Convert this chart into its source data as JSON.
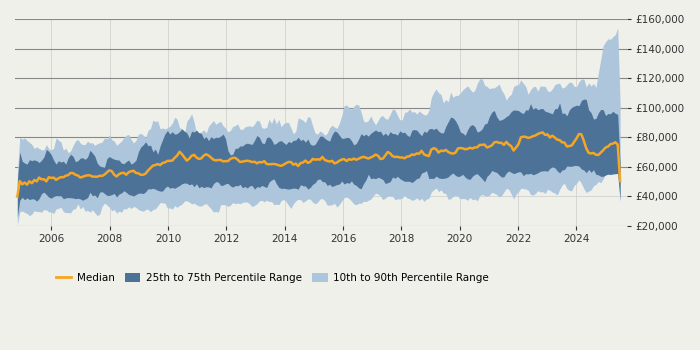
{
  "x_start_year": 2004.75,
  "x_end_year": 2025.75,
  "y_min": 20000,
  "y_max": 160000,
  "y_ticks": [
    20000,
    40000,
    60000,
    80000,
    100000,
    120000,
    140000,
    160000
  ],
  "x_ticks": [
    2006,
    2008,
    2010,
    2012,
    2014,
    2016,
    2018,
    2020,
    2022,
    2024
  ],
  "color_median": "#F5A623",
  "color_p25_75": "#4D7298",
  "color_p10_90": "#ADC6DC",
  "bg_color": "#F0F0EB",
  "legend_labels": [
    "Median",
    "25th to 75th Percentile Range",
    "10th to 90th Percentile Range"
  ]
}
